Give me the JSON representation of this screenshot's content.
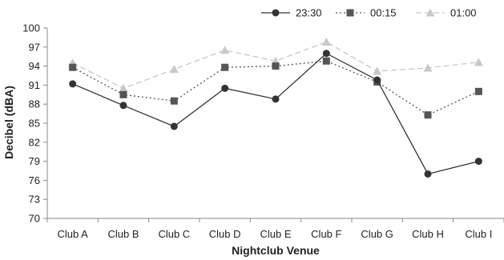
{
  "chart_data": {
    "type": "line",
    "categories": [
      "Club A",
      "Club B",
      "Club C",
      "Club D",
      "Club E",
      "Club F",
      "Club G",
      "Club H",
      "Club I"
    ],
    "xlabel": "Nightclub Venue",
    "ylabel": "Decibel (dBA)",
    "ylim": [
      70,
      100
    ],
    "yticks": [
      "100",
      "97",
      "94",
      "91",
      "88",
      "85",
      "82",
      "79",
      "76",
      "73",
      "70"
    ],
    "grid": false,
    "legend_position": "top-right",
    "series": [
      {
        "name": "23:30",
        "values": [
          91.2,
          87.8,
          84.5,
          90.5,
          88.8,
          96.0,
          91.8,
          77.0,
          79.0
        ],
        "color": "#333333",
        "line_style": "solid",
        "marker": "circle"
      },
      {
        "name": "00:15",
        "values": [
          93.8,
          89.5,
          88.5,
          93.8,
          94.0,
          94.8,
          91.5,
          86.3,
          90.0
        ],
        "color": "#555555",
        "line_style": "dotted",
        "marker": "square"
      },
      {
        "name": "01:00",
        "values": [
          94.5,
          90.5,
          93.5,
          96.5,
          94.8,
          97.8,
          93.2,
          93.7,
          94.6
        ],
        "color": "#c8c8c8",
        "line_style": "dashed",
        "marker": "triangle"
      }
    ]
  }
}
